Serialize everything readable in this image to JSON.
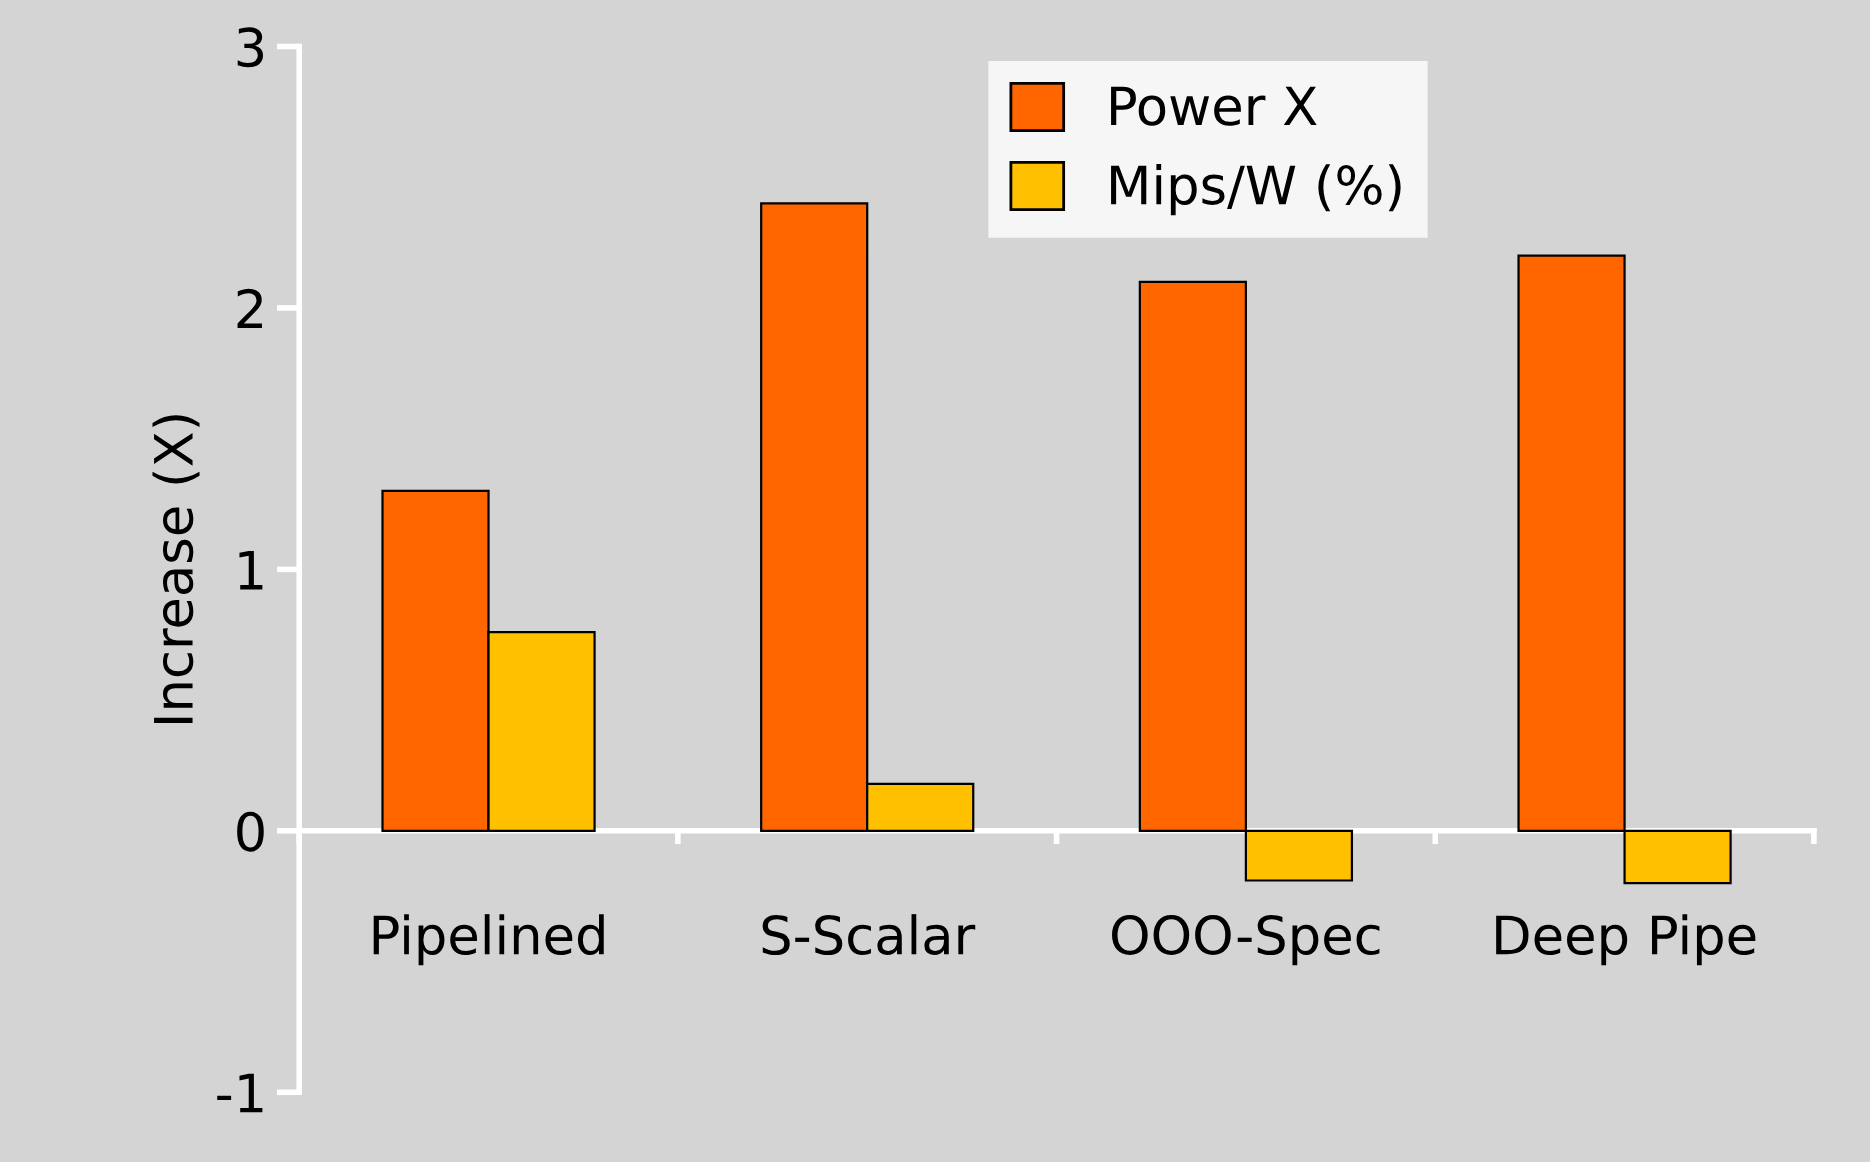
{
  "chart_data": {
    "type": "bar",
    "ylabel": "Increase (X)",
    "categories": [
      "Pipelined",
      "S-Scalar",
      "OOO-Spec",
      "Deep Pipe"
    ],
    "series": [
      {
        "name": "Power X",
        "color": "#ff6600",
        "values": [
          1.3,
          2.4,
          2.1,
          2.2
        ]
      },
      {
        "name": "Mips/W (%)",
        "color": "#ffc000",
        "values": [
          0.76,
          0.18,
          -0.19,
          -0.2
        ]
      }
    ],
    "ylim": [
      -1,
      3
    ],
    "yticks": [
      -1,
      0,
      1,
      2,
      3
    ],
    "grid": false,
    "legend": "top"
  }
}
